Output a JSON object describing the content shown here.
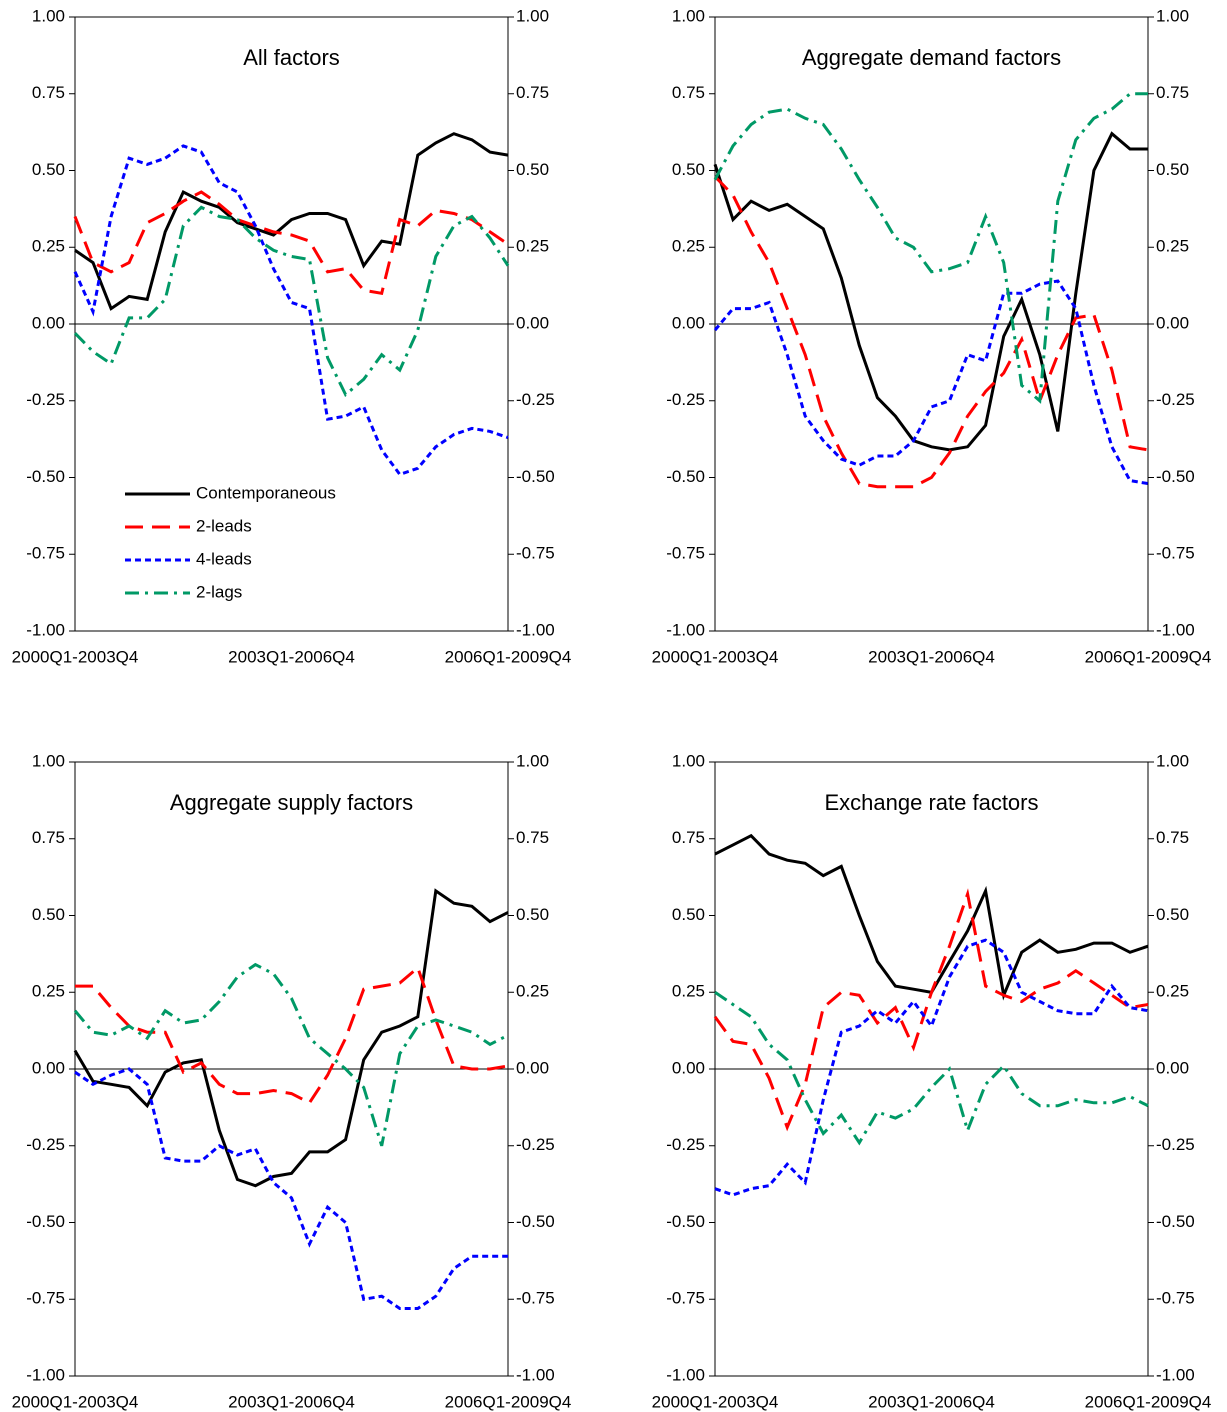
{
  "chart_data": [
    {
      "type": "line",
      "title": "All factors",
      "categories": [
        "2000Q1-2003Q4",
        null,
        null,
        null,
        null,
        null,
        null,
        null,
        null,
        null,
        null,
        null,
        "2003Q1-2006Q4",
        null,
        null,
        null,
        null,
        null,
        null,
        null,
        null,
        null,
        null,
        null,
        "2006Q1-2009Q4"
      ],
      "ylim": [
        -1,
        1
      ],
      "yticks": [
        {
          "value": -1,
          "label": "-1.00"
        },
        {
          "value": -0.75,
          "label": "-0.75"
        },
        {
          "value": -0.5,
          "label": "-0.50"
        },
        {
          "value": -0.25,
          "label": "-0.25"
        },
        {
          "value": 0,
          "label": "0.00"
        },
        {
          "value": 0.25,
          "label": "0.25"
        },
        {
          "value": 0.5,
          "label": "0.50"
        },
        {
          "value": 0.75,
          "label": "0.75"
        },
        {
          "value": 1,
          "label": "1.00"
        }
      ],
      "y2lim": [
        -1,
        1
      ],
      "y2ticks": [
        {
          "value": -1,
          "label": "-1.00"
        },
        {
          "value": -0.75,
          "label": "-0.75"
        },
        {
          "value": -0.5,
          "label": "-0.50"
        },
        {
          "value": -0.25,
          "label": "-0.25"
        },
        {
          "value": 0,
          "label": "0.00"
        },
        {
          "value": 0.25,
          "label": "0.25"
        },
        {
          "value": 0.5,
          "label": "0.50"
        },
        {
          "value": 0.75,
          "label": "0.75"
        },
        {
          "value": 1,
          "label": "1.00"
        }
      ],
      "legend": "lower-left",
      "series": [
        {
          "name": "Contemporaneous",
          "color": "#000000",
          "style": "solid",
          "values": [
            0.24,
            0.2,
            0.05,
            0.09,
            0.08,
            0.3,
            0.43,
            0.4,
            0.38,
            0.33,
            0.31,
            0.29,
            0.34,
            0.36,
            0.36,
            0.34,
            0.19,
            0.27,
            0.26,
            0.55,
            0.59,
            0.62,
            0.6,
            0.56,
            0.55
          ]
        },
        {
          "name": "2-leads",
          "color": "#ff0000",
          "style": "long-dash",
          "values": [
            0.35,
            0.2,
            0.17,
            0.2,
            0.33,
            0.36,
            0.4,
            0.43,
            0.39,
            0.34,
            0.32,
            0.3,
            0.29,
            0.27,
            0.17,
            0.18,
            0.11,
            0.1,
            0.34,
            0.32,
            0.37,
            0.36,
            0.34,
            0.3,
            0.26
          ]
        },
        {
          "name": "4-leads",
          "color": "#0000ff",
          "style": "short-dash",
          "values": [
            0.17,
            0.04,
            0.35,
            0.54,
            0.52,
            0.54,
            0.58,
            0.56,
            0.46,
            0.43,
            0.32,
            0.18,
            0.07,
            0.05,
            -0.31,
            -0.3,
            -0.27,
            -0.41,
            -0.49,
            -0.47,
            -0.4,
            -0.36,
            -0.34,
            -0.35,
            -0.37
          ]
        },
        {
          "name": "2-lags",
          "color": "#009966",
          "style": "dash-dot",
          "values": [
            -0.03,
            -0.09,
            -0.13,
            0.02,
            0.02,
            0.08,
            0.32,
            0.38,
            0.35,
            0.34,
            0.28,
            0.24,
            0.22,
            0.21,
            -0.11,
            -0.23,
            -0.18,
            -0.1,
            -0.15,
            -0.02,
            0.22,
            0.32,
            0.35,
            0.28,
            0.19
          ]
        }
      ]
    },
    {
      "type": "line",
      "title": "Aggregate demand factors",
      "categories": [
        "2000Q1-2003Q4",
        null,
        null,
        null,
        null,
        null,
        null,
        null,
        null,
        null,
        null,
        null,
        "2003Q1-2006Q4",
        null,
        null,
        null,
        null,
        null,
        null,
        null,
        null,
        null,
        null,
        null,
        "2006Q1-2009Q4"
      ],
      "ylim": [
        -1,
        1
      ],
      "yticks": [
        {
          "value": -1,
          "label": "-1.00"
        },
        {
          "value": -0.75,
          "label": "-0.75"
        },
        {
          "value": -0.5,
          "label": "-0.50"
        },
        {
          "value": -0.25,
          "label": "-0.25"
        },
        {
          "value": 0,
          "label": "0.00"
        },
        {
          "value": 0.25,
          "label": "0.25"
        },
        {
          "value": 0.5,
          "label": "0.50"
        },
        {
          "value": 0.75,
          "label": "0.75"
        },
        {
          "value": 1,
          "label": "1.00"
        }
      ],
      "y2lim": [
        -1,
        1
      ],
      "y2ticks": [
        {
          "value": -1,
          "label": "-1.00"
        },
        {
          "value": -0.75,
          "label": "-0.75"
        },
        {
          "value": -0.5,
          "label": "-0.50"
        },
        {
          "value": -0.25,
          "label": "-0.25"
        },
        {
          "value": 0,
          "label": "0.00"
        },
        {
          "value": 0.25,
          "label": "0.25"
        },
        {
          "value": 0.5,
          "label": "0.50"
        },
        {
          "value": 0.75,
          "label": "0.75"
        },
        {
          "value": 1,
          "label": "1.00"
        }
      ],
      "series": [
        {
          "color": "#000000",
          "style": "solid",
          "values": [
            0.52,
            0.34,
            0.4,
            0.37,
            0.39,
            0.35,
            0.31,
            0.15,
            -0.07,
            -0.24,
            -0.3,
            -0.38,
            -0.4,
            -0.41,
            -0.4,
            -0.33,
            -0.04,
            0.08,
            -0.1,
            -0.35,
            0.1,
            0.5,
            0.62,
            0.57,
            0.57
          ]
        },
        {
          "color": "#ff0000",
          "style": "long-dash",
          "values": [
            0.48,
            0.42,
            0.3,
            0.2,
            0.05,
            -0.1,
            -0.3,
            -0.42,
            -0.52,
            -0.53,
            -0.53,
            -0.53,
            -0.5,
            -0.42,
            -0.3,
            -0.22,
            -0.16,
            -0.05,
            -0.25,
            -0.1,
            0.02,
            0.03,
            -0.15,
            -0.4,
            -0.41
          ]
        },
        {
          "color": "#0000ff",
          "style": "short-dash",
          "values": [
            -0.02,
            0.05,
            0.05,
            0.07,
            -0.1,
            -0.3,
            -0.38,
            -0.44,
            -0.46,
            -0.43,
            -0.43,
            -0.38,
            -0.27,
            -0.25,
            -0.1,
            -0.12,
            0.1,
            0.1,
            0.13,
            0.14,
            0.05,
            -0.2,
            -0.4,
            -0.51,
            -0.52
          ]
        },
        {
          "color": "#009966",
          "style": "dash-dot",
          "values": [
            0.47,
            0.58,
            0.65,
            0.69,
            0.7,
            0.67,
            0.65,
            0.57,
            0.47,
            0.38,
            0.28,
            0.25,
            0.17,
            0.18,
            0.2,
            0.35,
            0.2,
            -0.2,
            -0.25,
            0.4,
            0.6,
            0.67,
            0.7,
            0.75,
            0.75
          ]
        }
      ]
    },
    {
      "type": "line",
      "title": "Aggregate supply factors",
      "categories": [
        "2000Q1-2003Q4",
        null,
        null,
        null,
        null,
        null,
        null,
        null,
        null,
        null,
        null,
        null,
        "2003Q1-2006Q4",
        null,
        null,
        null,
        null,
        null,
        null,
        null,
        null,
        null,
        null,
        null,
        "2006Q1-2009Q4"
      ],
      "ylim": [
        -1,
        1
      ],
      "yticks": [
        {
          "value": -1,
          "label": "-1.00"
        },
        {
          "value": -0.75,
          "label": "-0.75"
        },
        {
          "value": -0.5,
          "label": "-0.50"
        },
        {
          "value": -0.25,
          "label": "-0.25"
        },
        {
          "value": 0,
          "label": "0.00"
        },
        {
          "value": 0.25,
          "label": "0.25"
        },
        {
          "value": 0.5,
          "label": "0.50"
        },
        {
          "value": 0.75,
          "label": "0.75"
        },
        {
          "value": 1,
          "label": "1.00"
        }
      ],
      "y2lim": [
        -1,
        1
      ],
      "y2ticks": [
        {
          "value": -1,
          "label": "-1.00"
        },
        {
          "value": -0.75,
          "label": "-0.75"
        },
        {
          "value": -0.5,
          "label": "-0.50"
        },
        {
          "value": -0.25,
          "label": "-0.25"
        },
        {
          "value": 0,
          "label": "0.00"
        },
        {
          "value": 0.25,
          "label": "0.25"
        },
        {
          "value": 0.5,
          "label": "0.50"
        },
        {
          "value": 0.75,
          "label": "0.75"
        },
        {
          "value": 1,
          "label": "1.00"
        }
      ],
      "series": [
        {
          "color": "#000000",
          "style": "solid",
          "values": [
            0.06,
            -0.04,
            -0.05,
            -0.06,
            -0.12,
            -0.01,
            0.02,
            0.03,
            -0.2,
            -0.36,
            -0.38,
            -0.35,
            -0.34,
            -0.27,
            -0.27,
            -0.23,
            0.03,
            0.12,
            0.14,
            0.17,
            0.58,
            0.54,
            0.53,
            0.48,
            0.51
          ]
        },
        {
          "color": "#ff0000",
          "style": "long-dash",
          "values": [
            0.27,
            0.27,
            0.2,
            0.14,
            0.12,
            0.12,
            -0.01,
            0.02,
            -0.05,
            -0.08,
            -0.08,
            -0.07,
            -0.08,
            -0.11,
            -0.02,
            0.1,
            0.26,
            0.27,
            0.28,
            0.33,
            0.16,
            0.01,
            0,
            0,
            0.01
          ]
        },
        {
          "color": "#0000ff",
          "style": "short-dash",
          "values": [
            -0.01,
            -0.05,
            -0.02,
            0,
            -0.05,
            -0.29,
            -0.3,
            -0.3,
            -0.25,
            -0.28,
            -0.26,
            -0.37,
            -0.42,
            -0.57,
            -0.45,
            -0.5,
            -0.75,
            -0.74,
            -0.78,
            -0.78,
            -0.74,
            -0.65,
            -0.61,
            -0.61,
            -0.61
          ]
        },
        {
          "color": "#009966",
          "style": "dash-dot",
          "values": [
            0.19,
            0.12,
            0.11,
            0.14,
            0.1,
            0.19,
            0.15,
            0.16,
            0.22,
            0.3,
            0.34,
            0.31,
            0.23,
            0.1,
            0.05,
            0,
            -0.06,
            -0.25,
            0.05,
            0.14,
            0.16,
            0.14,
            0.12,
            0.08,
            0.11
          ]
        }
      ]
    },
    {
      "type": "line",
      "title": "Exchange rate factors",
      "categories": [
        "2000Q1-2003Q4",
        null,
        null,
        null,
        null,
        null,
        null,
        null,
        null,
        null,
        null,
        null,
        "2003Q1-2006Q4",
        null,
        null,
        null,
        null,
        null,
        null,
        null,
        null,
        null,
        null,
        null,
        "2006Q1-2009Q4"
      ],
      "ylim": [
        -1,
        1
      ],
      "yticks": [
        {
          "value": -1,
          "label": "-1.00"
        },
        {
          "value": -0.75,
          "label": "-0.75"
        },
        {
          "value": -0.5,
          "label": "-0.50"
        },
        {
          "value": -0.25,
          "label": "-0.25"
        },
        {
          "value": 0,
          "label": "0.00"
        },
        {
          "value": 0.25,
          "label": "0.25"
        },
        {
          "value": 0.5,
          "label": "0.50"
        },
        {
          "value": 0.75,
          "label": "0.75"
        },
        {
          "value": 1,
          "label": "1.00"
        }
      ],
      "y2lim": [
        -1,
        1
      ],
      "y2ticks": [
        {
          "value": -1,
          "label": "-1.00"
        },
        {
          "value": -0.75,
          "label": "-0.75"
        },
        {
          "value": -0.5,
          "label": "-0.50"
        },
        {
          "value": -0.25,
          "label": "-0.25"
        },
        {
          "value": 0,
          "label": "0.00"
        },
        {
          "value": 0.25,
          "label": "0.25"
        },
        {
          "value": 0.5,
          "label": "0.50"
        },
        {
          "value": 0.75,
          "label": "0.75"
        },
        {
          "value": 1,
          "label": "1.00"
        }
      ],
      "series": [
        {
          "color": "#000000",
          "style": "solid",
          "values": [
            0.7,
            0.73,
            0.76,
            0.7,
            0.68,
            0.67,
            0.63,
            0.66,
            0.5,
            0.35,
            0.27,
            0.26,
            0.25,
            0.35,
            0.45,
            0.58,
            0.24,
            0.38,
            0.42,
            0.38,
            0.39,
            0.41,
            0.41,
            0.38,
            0.4
          ]
        },
        {
          "color": "#ff0000",
          "style": "long-dash",
          "values": [
            0.17,
            0.09,
            0.08,
            -0.03,
            -0.19,
            -0.05,
            0.2,
            0.25,
            0.24,
            0.15,
            0.2,
            0.07,
            0.25,
            0.4,
            0.57,
            0.27,
            0.24,
            0.22,
            0.26,
            0.28,
            0.32,
            0.28,
            0.24,
            0.2,
            0.21
          ]
        },
        {
          "color": "#0000ff",
          "style": "short-dash",
          "values": [
            -0.39,
            -0.41,
            -0.39,
            -0.38,
            -0.31,
            -0.37,
            -0.1,
            0.12,
            0.14,
            0.19,
            0.15,
            0.22,
            0.14,
            0.3,
            0.4,
            0.42,
            0.38,
            0.25,
            0.22,
            0.19,
            0.18,
            0.18,
            0.27,
            0.2,
            0.19
          ]
        },
        {
          "color": "#009966",
          "style": "dash-dot",
          "values": [
            0.25,
            0.21,
            0.17,
            0.08,
            0.03,
            -0.1,
            -0.21,
            -0.15,
            -0.24,
            -0.14,
            -0.16,
            -0.13,
            -0.06,
            0,
            -0.2,
            -0.05,
            0.01,
            -0.08,
            -0.12,
            -0.12,
            -0.1,
            -0.11,
            -0.11,
            -0.09,
            -0.12
          ]
        }
      ]
    }
  ]
}
